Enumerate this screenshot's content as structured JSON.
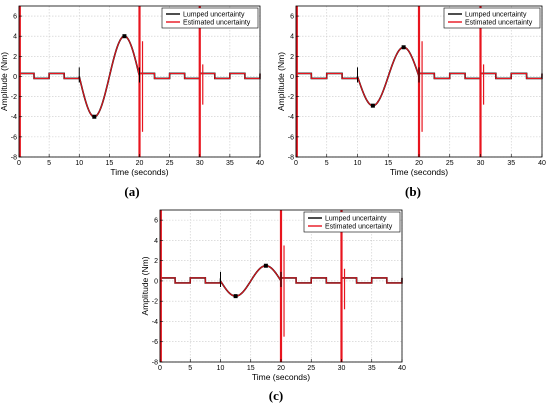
{
  "chart_data": [
    {
      "type": "line",
      "caption": "(a)",
      "xlabel": "Time (seconds)",
      "ylabel": "Amplitude (Nm)",
      "xlim": [
        0,
        40
      ],
      "ylim": [
        -8,
        7
      ],
      "xticks": [
        0,
        5,
        10,
        15,
        20,
        25,
        30,
        35,
        40
      ],
      "yticks": [
        -8,
        -6,
        -4,
        -2,
        0,
        2,
        4,
        6
      ],
      "grid": true,
      "legend_position": "top-right",
      "bump_amplitude": 4.0,
      "series": [
        {
          "name": "Lumped uncertainty",
          "color": "#000000"
        },
        {
          "name": "Estimated uncertainty",
          "color": "#e8141e"
        }
      ]
    },
    {
      "type": "line",
      "caption": "(b)",
      "xlabel": "Time (seconds)",
      "ylabel": "Amplitude (Nm)",
      "xlim": [
        0,
        40
      ],
      "ylim": [
        -8,
        7
      ],
      "xticks": [
        0,
        5,
        10,
        15,
        20,
        25,
        30,
        35,
        40
      ],
      "yticks": [
        -8,
        -6,
        -4,
        -2,
        0,
        2,
        4,
        6
      ],
      "grid": true,
      "legend_position": "top-right",
      "bump_amplitude": 2.9,
      "series": [
        {
          "name": "Lumped uncertainty",
          "color": "#000000"
        },
        {
          "name": "Estimated uncertainty",
          "color": "#e8141e"
        }
      ]
    },
    {
      "type": "line",
      "caption": "(c)",
      "xlabel": "Time (seconds)",
      "ylabel": "Amplitude (Nm)",
      "xlim": [
        0,
        40
      ],
      "ylim": [
        -8,
        7
      ],
      "xticks": [
        0,
        5,
        10,
        15,
        20,
        25,
        30,
        35,
        40
      ],
      "yticks": [
        -8,
        -6,
        -4,
        -2,
        0,
        2,
        4,
        6
      ],
      "grid": true,
      "legend_position": "top-right",
      "bump_amplitude": 1.5,
      "series": [
        {
          "name": "Lumped uncertainty",
          "color": "#000000"
        },
        {
          "name": "Estimated uncertainty",
          "color": "#e8141e"
        }
      ]
    }
  ]
}
